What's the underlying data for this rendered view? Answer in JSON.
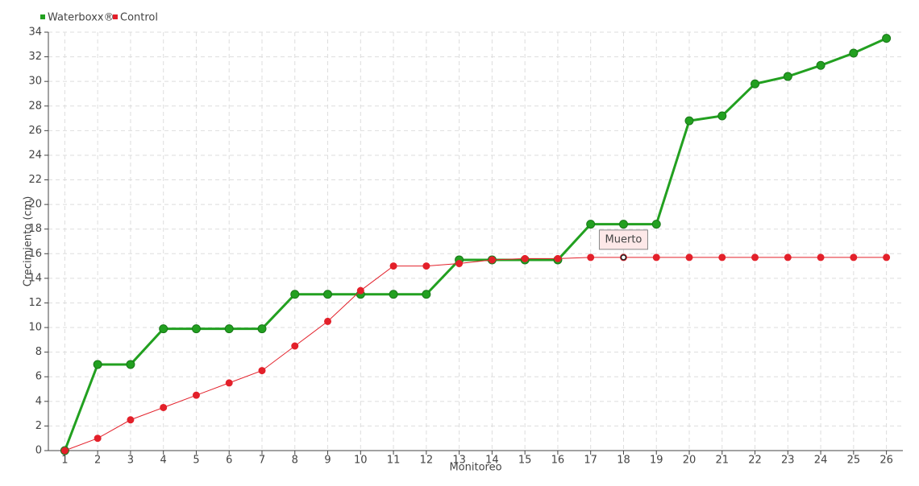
{
  "chart_data": {
    "type": "line",
    "xlabel": "Monitoreo",
    "ylabel": "Crecimiento (cm)",
    "x": [
      1,
      2,
      3,
      4,
      5,
      6,
      7,
      8,
      9,
      10,
      11,
      12,
      13,
      14,
      15,
      16,
      17,
      18,
      19,
      20,
      21,
      22,
      23,
      24,
      25,
      26
    ],
    "series": [
      {
        "name": "Waterboxx®",
        "color": "#22a020",
        "values": [
          0,
          7,
          7,
          9.9,
          9.9,
          9.9,
          9.9,
          12.7,
          12.7,
          12.7,
          12.7,
          12.7,
          15.5,
          15.5,
          15.5,
          15.5,
          18.4,
          18.4,
          18.4,
          26.8,
          27.2,
          29.8,
          30.4,
          31.3,
          32.3,
          33.5
        ]
      },
      {
        "name": "Control",
        "color": "#e3202a",
        "values": [
          0,
          1,
          2.5,
          3.5,
          4.5,
          5.5,
          6.5,
          8.5,
          10.5,
          13,
          15,
          15,
          15.2,
          15.5,
          15.6,
          15.6,
          15.7,
          15.7,
          15.7,
          15.7,
          15.7,
          15.7,
          15.7,
          15.7,
          15.7,
          15.7
        ]
      }
    ],
    "annotations": [
      {
        "text": "Muerto",
        "x": 18,
        "y": 15.7
      }
    ],
    "xlim": [
      0.5,
      26.5
    ],
    "xticks": [
      1,
      2,
      3,
      4,
      5,
      6,
      7,
      8,
      9,
      10,
      11,
      12,
      13,
      14,
      15,
      16,
      17,
      18,
      19,
      20,
      21,
      22,
      23,
      24,
      25,
      26
    ],
    "ylim": [
      0,
      34
    ],
    "yticks": [
      0,
      2,
      4,
      6,
      8,
      10,
      12,
      14,
      16,
      18,
      20,
      22,
      24,
      26,
      28,
      30,
      32,
      34
    ],
    "grid": true,
    "legend": "top-left"
  }
}
